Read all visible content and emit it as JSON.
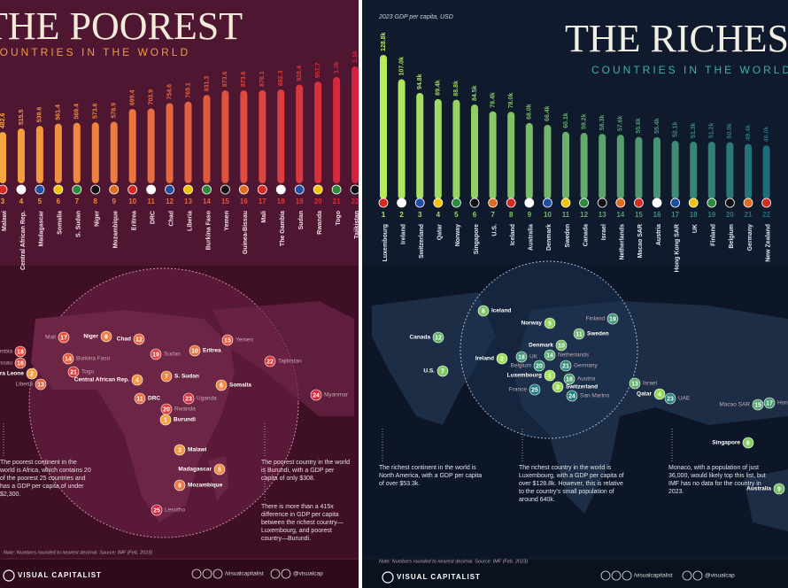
{
  "chart_data": [
    {
      "type": "bar",
      "title": "THE POOREST",
      "subtitle": "COUNTRIES IN THE WORLD",
      "ranks": [
        3,
        4,
        5,
        6,
        7,
        8,
        9,
        10,
        11,
        12,
        13,
        14,
        15,
        16,
        17,
        18,
        19,
        20,
        21,
        22
      ],
      "categories": [
        "Malawi",
        "Central African Rep.",
        "Madagascar",
        "Somalia",
        "S. Sudan",
        "Niger",
        "Mozambique",
        "Eritrea",
        "DRC",
        "Chad",
        "Liberia",
        "Burkina Faso",
        "Yemen",
        "Guinea-Bissau",
        "Mali",
        "The Gambia",
        "Sudan",
        "Rwanda",
        "Togo",
        "Tajikistan"
      ],
      "values": [
        482.6,
        515.5,
        539.6,
        561.4,
        569.4,
        573.6,
        578.9,
        699.4,
        703.9,
        754.6,
        769.1,
        831.3,
        873.6,
        873.6,
        876.1,
        882.3,
        928.4,
        957.7,
        1000,
        1100
      ],
      "value_labels": [
        "482.6",
        "515.5",
        "539.6",
        "561.4",
        "569.4",
        "573.6",
        "578.9",
        "699.4",
        "703.9",
        "754.6",
        "769.1",
        "831.3",
        "873.6",
        "873.6",
        "876.1",
        "882.3",
        "928.4",
        "957.7",
        "1.0k",
        "1.1k"
      ],
      "colors": [
        "#f7a541",
        "#d4223c"
      ],
      "markers": [
        {
          "rank": 17,
          "label": "Mali"
        },
        {
          "rank": 8,
          "label": "Niger"
        },
        {
          "rank": 12,
          "label": "Chad"
        },
        {
          "rank": 15,
          "label": "Yemen"
        },
        {
          "rank": 18,
          "label": "The Gambia"
        },
        {
          "rank": 14,
          "label": "Burkina Faso"
        },
        {
          "rank": 19,
          "label": "Sudan"
        },
        {
          "rank": 10,
          "label": "Eritrea"
        },
        {
          "rank": 22,
          "label": "Tajikistan"
        },
        {
          "rank": 16,
          "label": "Guinea-Bissau"
        },
        {
          "rank": 21,
          "label": "Togo"
        },
        {
          "rank": 2,
          "label": "Sierra Leone"
        },
        {
          "rank": 4,
          "label": "Central African Rep."
        },
        {
          "rank": 7,
          "label": "S. Sudan"
        },
        {
          "rank": 6,
          "label": "Somalia"
        },
        {
          "rank": 13,
          "label": "Liberia"
        },
        {
          "rank": 11,
          "label": "DRC"
        },
        {
          "rank": 20,
          "label": "Rwanda"
        },
        {
          "rank": 23,
          "label": "Uganda"
        },
        {
          "rank": 24,
          "label": "Myanmar"
        },
        {
          "rank": 1,
          "label": "Burundi"
        },
        {
          "rank": 3,
          "label": "Malawi"
        },
        {
          "rank": 5,
          "label": "Madagascar"
        },
        {
          "rank": 9,
          "label": "Mozambique"
        },
        {
          "rank": 25,
          "label": "Lesotho"
        }
      ],
      "notes": [
        "The poorest continent in the world is Africa, which contains 20 of the poorest 25 countries and has a GDP per capita of under $2,300.",
        "The poorest country in the world is Burundi, with a GDP per capita of only $308.",
        "There is more than a 415x difference in GDP per capita between the richest country—Luxembourg, and poorest country—Burundi."
      ],
      "footnote": "Note: Numbers rounded to nearest decimal. Source: IMF (Feb. 2023)",
      "brand": "VISUAL CAPITALIST",
      "social": [
        "/visualcapitalist",
        "@visualcap"
      ]
    },
    {
      "type": "bar",
      "title": "THE RICHEST",
      "subtitle": "COUNTRIES IN THE WORLD",
      "caption": "2023 GDP per capita, USD",
      "ranks": [
        1,
        2,
        3,
        4,
        5,
        6,
        7,
        8,
        9,
        10,
        11,
        12,
        13,
        14,
        15,
        16,
        17,
        18,
        19,
        20,
        21,
        22
      ],
      "categories": [
        "Luxembourg",
        "Ireland",
        "Switzerland",
        "Qatar",
        "Norway",
        "Singapore",
        "U.S.",
        "Iceland",
        "Australia",
        "Denmark",
        "Sweden",
        "Canada",
        "Israel",
        "Netherlands",
        "Macao SAR",
        "Austria",
        "Hong Kong SAR",
        "UK",
        "Finland",
        "Belgium",
        "Germany",
        "New Zealand"
      ],
      "values": [
        128800,
        107000,
        94800,
        89400,
        88800,
        84500,
        78400,
        78000,
        68000,
        66400,
        60100,
        59200,
        58300,
        57600,
        55600,
        55400,
        52100,
        51300,
        51200,
        50900,
        49400,
        48000
      ],
      "value_labels": [
        "128.8k",
        "107.0k",
        "94.8k",
        "89.4k",
        "88.8k",
        "84.5k",
        "78.4k",
        "78.0k",
        "68.0k",
        "66.4k",
        "60.1k",
        "59.2k",
        "58.3k",
        "57.6k",
        "55.6k",
        "55.4k",
        "52.1k",
        "51.3k",
        "51.2k",
        "50.9k",
        "49.4k",
        "48.0k"
      ],
      "colors": [
        "#b5ec5e",
        "#1c6d79"
      ],
      "markers": [
        {
          "rank": 8,
          "label": "Iceland"
        },
        {
          "rank": 5,
          "label": "Norway"
        },
        {
          "rank": 19,
          "label": "Finland"
        },
        {
          "rank": 11,
          "label": "Sweden"
        },
        {
          "rank": 12,
          "label": "Canada"
        },
        {
          "rank": 10,
          "label": "Denmark"
        },
        {
          "rank": 2,
          "label": "Ireland"
        },
        {
          "rank": 18,
          "label": "UK"
        },
        {
          "rank": 14,
          "label": "Netherlands"
        },
        {
          "rank": 7,
          "label": "U.S."
        },
        {
          "rank": 20,
          "label": "Belgium"
        },
        {
          "rank": 21,
          "label": "Germany"
        },
        {
          "rank": 1,
          "label": "Luxembourg"
        },
        {
          "rank": 16,
          "label": "Austria"
        },
        {
          "rank": 3,
          "label": "Switzerland"
        },
        {
          "rank": 25,
          "label": "France"
        },
        {
          "rank": 24,
          "label": "San Marino"
        },
        {
          "rank": 13,
          "label": "Israel"
        },
        {
          "rank": 4,
          "label": "Qatar"
        },
        {
          "rank": 23,
          "label": "UAE"
        },
        {
          "rank": 15,
          "label": "Macao SAR"
        },
        {
          "rank": 17,
          "label": "Hong Kong SAR"
        },
        {
          "rank": 6,
          "label": "Singapore"
        },
        {
          "rank": 9,
          "label": "Australia"
        }
      ],
      "notes": [
        "The richest continent in the world is North America, with a GDP per capita of over $53.3k.",
        "The richest country in the world is Luxembourg, with a GDP per capita of over $128.8k. However, this is relative to the country's small population of around 640k.",
        "Monaco, with a population of just 36,000, would likely top this list, but IMF has no data for the country in 2023."
      ],
      "footnote": "Note: Numbers rounded to nearest decimal. Source: IMF (Feb. 2023)",
      "brand": "VISUAL CAPITALIST",
      "social": [
        "/visualcapitalist",
        "@visualcap"
      ]
    }
  ]
}
